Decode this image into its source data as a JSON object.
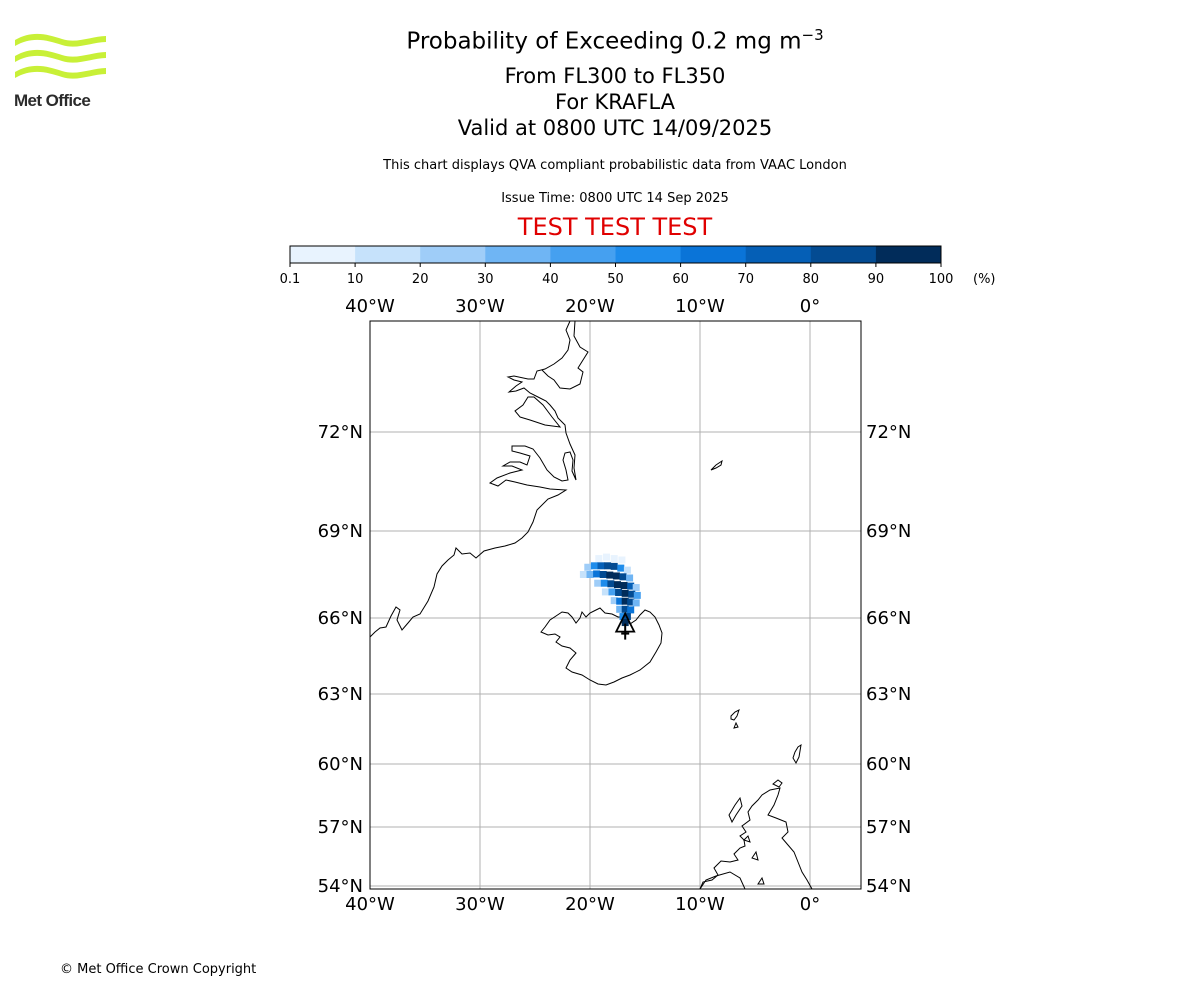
{
  "header": {
    "logo_name": "Met Office",
    "title_main": "Probability of Exceeding 0.2 mg m",
    "title_sup": "−3",
    "subtitle_levels": "From FL300 to FL350",
    "subtitle_volcano": "For KRAFLA",
    "subtitle_valid": "Valid at 0800 UTC 14/09/2025",
    "disclaimer": "This chart displays QVA compliant probabilistic data from VAAC London",
    "issue_time": "Issue Time: 0800 UTC 14 Sep 2025",
    "test_banner": "TEST TEST TEST"
  },
  "colorbar": {
    "ticks": [
      "0.1",
      "10",
      "20",
      "30",
      "40",
      "50",
      "60",
      "70",
      "80",
      "90",
      "100"
    ],
    "unit": "(%)",
    "colors": [
      "#e8f3fe",
      "#c6e2fb",
      "#9fcdf8",
      "#6fb5f4",
      "#45a0f0",
      "#1e8ceb",
      "#0a74d8",
      "#055fb6",
      "#034b92",
      "#012c5a"
    ]
  },
  "map": {
    "lon_labels": [
      {
        "lon": -40,
        "label": "40°W"
      },
      {
        "lon": -30,
        "label": "30°W"
      },
      {
        "lon": -20,
        "label": "20°W"
      },
      {
        "lon": -10,
        "label": "10°W"
      },
      {
        "lon": 0,
        "label": "0°"
      }
    ],
    "lat_labels": [
      {
        "lat": 72,
        "label": "72°N"
      },
      {
        "lat": 69,
        "label": "69°N"
      },
      {
        "lat": 66,
        "label": "66°N"
      },
      {
        "lat": 63,
        "label": "63°N"
      },
      {
        "lat": 60,
        "label": "60°N"
      },
      {
        "lat": 57,
        "label": "57°N"
      },
      {
        "lat": 54,
        "label": "54°N"
      }
    ],
    "extent": {
      "lon_min": -40,
      "lon_max": 4.5,
      "lat_min": 54,
      "lat_max": 75
    },
    "volcano": {
      "name": "KRAFLA",
      "lon": -16.8,
      "lat": 65.7
    },
    "plume_cells": [
      {
        "lon": -19.2,
        "lat": 68.05,
        "p": 8
      },
      {
        "lon": -18.5,
        "lat": 68.1,
        "p": 8
      },
      {
        "lon": -17.8,
        "lat": 68.05,
        "p": 8
      },
      {
        "lon": -17.1,
        "lat": 68.0,
        "p": 8
      },
      {
        "lon": -20.2,
        "lat": 67.75,
        "p": 25
      },
      {
        "lon": -19.6,
        "lat": 67.8,
        "p": 55
      },
      {
        "lon": -19.0,
        "lat": 67.8,
        "p": 75
      },
      {
        "lon": -18.4,
        "lat": 67.8,
        "p": 82
      },
      {
        "lon": -17.8,
        "lat": 67.78,
        "p": 82
      },
      {
        "lon": -17.2,
        "lat": 67.72,
        "p": 55
      },
      {
        "lon": -16.6,
        "lat": 67.65,
        "p": 15
      },
      {
        "lon": -20.6,
        "lat": 67.5,
        "p": 15
      },
      {
        "lon": -20.0,
        "lat": 67.5,
        "p": 35
      },
      {
        "lon": -19.4,
        "lat": 67.52,
        "p": 65
      },
      {
        "lon": -18.8,
        "lat": 67.5,
        "p": 85
      },
      {
        "lon": -18.2,
        "lat": 67.48,
        "p": 92
      },
      {
        "lon": -17.6,
        "lat": 67.45,
        "p": 92
      },
      {
        "lon": -17.0,
        "lat": 67.42,
        "p": 80
      },
      {
        "lon": -16.4,
        "lat": 67.38,
        "p": 35
      },
      {
        "lon": -19.3,
        "lat": 67.2,
        "p": 25
      },
      {
        "lon": -18.7,
        "lat": 67.2,
        "p": 55
      },
      {
        "lon": -18.1,
        "lat": 67.18,
        "p": 85
      },
      {
        "lon": -17.5,
        "lat": 67.15,
        "p": 95
      },
      {
        "lon": -16.9,
        "lat": 67.12,
        "p": 95
      },
      {
        "lon": -16.3,
        "lat": 67.1,
        "p": 75
      },
      {
        "lon": -15.8,
        "lat": 67.05,
        "p": 20
      },
      {
        "lon": -18.6,
        "lat": 66.9,
        "p": 15
      },
      {
        "lon": -18.0,
        "lat": 66.9,
        "p": 45
      },
      {
        "lon": -17.4,
        "lat": 66.88,
        "p": 85
      },
      {
        "lon": -16.8,
        "lat": 66.85,
        "p": 95
      },
      {
        "lon": -16.2,
        "lat": 66.82,
        "p": 88
      },
      {
        "lon": -15.7,
        "lat": 66.78,
        "p": 45
      },
      {
        "lon": -17.8,
        "lat": 66.6,
        "p": 20
      },
      {
        "lon": -17.3,
        "lat": 66.58,
        "p": 65
      },
      {
        "lon": -16.8,
        "lat": 66.58,
        "p": 92
      },
      {
        "lon": -16.3,
        "lat": 66.55,
        "p": 88
      },
      {
        "lon": -15.8,
        "lat": 66.52,
        "p": 35
      },
      {
        "lon": -17.3,
        "lat": 66.3,
        "p": 35
      },
      {
        "lon": -16.8,
        "lat": 66.3,
        "p": 85
      },
      {
        "lon": -16.3,
        "lat": 66.28,
        "p": 65
      },
      {
        "lon": -17.0,
        "lat": 66.05,
        "p": 55
      },
      {
        "lon": -16.6,
        "lat": 66.05,
        "p": 80
      },
      {
        "lon": -16.8,
        "lat": 65.82,
        "p": 92
      }
    ]
  },
  "footer": {
    "copyright": "© Met Office Crown Copyright"
  }
}
